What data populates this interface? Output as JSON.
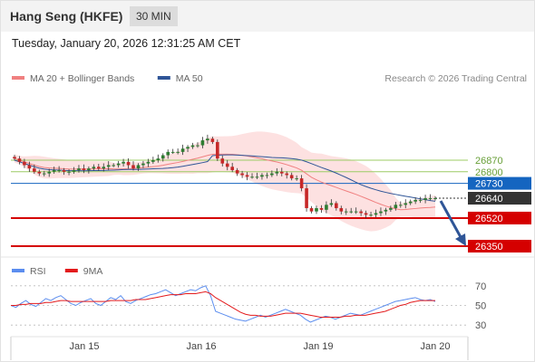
{
  "header": {
    "title": "Hang Seng (HKFE)",
    "interval": "30 MIN",
    "timestamp": "Tuesday, January 20, 2026 12:31:25 AM CET"
  },
  "colors": {
    "bollinger_line": "#f08080",
    "bollinger_band": "#fcd9d9",
    "ma50": "#2f5597",
    "candle_up": "#2e7d32",
    "candle_down": "#c62828",
    "resistance": "#9ccc65",
    "support": "#d50000",
    "pivot": "#1565c0",
    "current": "#333333",
    "rsi": "#5b8def",
    "rsi_ma": "#e31a1c"
  },
  "chart_data": [
    {
      "type": "candlestick",
      "legend": [
        {
          "label": "MA 20 + Bollinger Bands",
          "key": "bollinger_line"
        },
        {
          "label": "MA 50",
          "key": "ma50"
        }
      ],
      "credit": "Research © 2026 Trading Central",
      "ylim": [
        26300,
        27000
      ],
      "x_labels": [
        "Jan 15",
        "Jan 16",
        "Jan 19",
        "Jan 20"
      ],
      "price_levels": [
        {
          "value": 26870,
          "label": "26870",
          "kind": "resistance"
        },
        {
          "value": 26800,
          "label": "26800",
          "kind": "resistance"
        },
        {
          "value": 26730,
          "label": "26730",
          "kind": "pivot"
        },
        {
          "value": 26640,
          "label": "26640",
          "kind": "current"
        },
        {
          "value": 26520,
          "label": "26520",
          "kind": "support"
        },
        {
          "value": 26350,
          "label": "26350",
          "kind": "support"
        }
      ],
      "close_series": [
        26880,
        26860,
        26840,
        26820,
        26800,
        26790,
        26790,
        26800,
        26810,
        26810,
        26800,
        26800,
        26810,
        26820,
        26810,
        26820,
        26830,
        26820,
        26830,
        26840,
        26840,
        26850,
        26860,
        26840,
        26820,
        26840,
        26850,
        26860,
        26870,
        26880,
        26900,
        26920,
        26920,
        26920,
        26940,
        26950,
        26960,
        26960,
        26990,
        27000,
        26980,
        26880,
        26850,
        26830,
        26810,
        26790,
        26780,
        26770,
        26770,
        26770,
        26780,
        26780,
        26790,
        26800,
        26790,
        26780,
        26760,
        26760,
        26700,
        26580,
        26560,
        26580,
        26570,
        26600,
        26610,
        26580,
        26560,
        26560,
        26560,
        26560,
        26550,
        26540,
        26540,
        26550,
        26560,
        26570,
        26580,
        26600,
        26600,
        26610,
        26620,
        26630,
        26630,
        26640,
        26640,
        26640
      ]
    },
    {
      "type": "line",
      "name": "rsi_panel",
      "legend": [
        {
          "label": "RSI",
          "key": "rsi"
        },
        {
          "label": "9MA",
          "key": "rsi_ma"
        }
      ],
      "ylim": [
        20,
        80
      ],
      "y_ticks": [
        70,
        50,
        30
      ],
      "rsi_values": [
        50,
        48,
        52,
        55,
        51,
        49,
        53,
        57,
        55,
        58,
        60,
        56,
        52,
        50,
        53,
        55,
        57,
        52,
        50,
        54,
        58,
        56,
        60,
        54,
        52,
        55,
        57,
        59,
        61,
        62,
        64,
        66,
        63,
        60,
        62,
        64,
        66,
        65,
        68,
        70,
        60,
        44,
        42,
        40,
        38,
        36,
        35,
        34,
        36,
        38,
        40,
        38,
        40,
        42,
        44,
        46,
        44,
        42,
        40,
        36,
        33,
        35,
        37,
        39,
        38,
        36,
        38,
        40,
        42,
        41,
        40,
        42,
        44,
        46,
        48,
        50,
        52,
        54,
        55,
        56,
        57,
        58,
        56,
        55,
        56,
        54
      ],
      "rsi_ma_values": [
        50,
        50,
        51,
        51,
        52,
        52,
        52,
        53,
        53,
        54,
        55,
        55,
        54,
        54,
        54,
        54,
        54,
        54,
        54,
        54,
        55,
        55,
        55,
        55,
        55,
        56,
        56,
        56,
        57,
        58,
        59,
        60,
        61,
        61,
        61,
        62,
        62,
        62,
        63,
        64,
        62,
        58,
        55,
        52,
        49,
        46,
        43,
        41,
        40,
        40,
        39,
        39,
        39,
        40,
        41,
        42,
        42,
        42,
        42,
        41,
        40,
        39,
        38,
        38,
        38,
        38,
        38,
        39,
        39,
        40,
        40,
        40,
        41,
        42,
        43,
        44,
        46,
        48,
        50,
        51,
        53,
        54,
        55,
        55,
        55,
        55
      ]
    }
  ]
}
